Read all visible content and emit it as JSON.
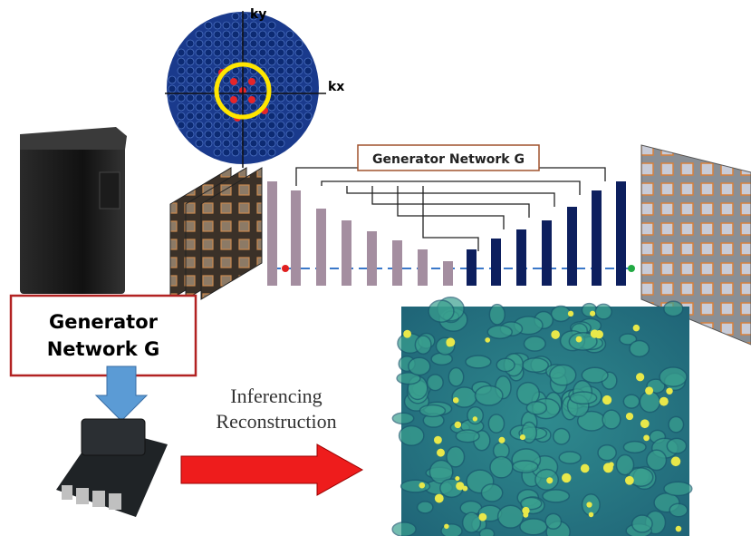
{
  "kspace": {
    "ky": "ky",
    "kx": "kx"
  },
  "network": {
    "title": "Generator Network G"
  },
  "box": {
    "lines": [
      "Generator",
      "Network G"
    ]
  },
  "arrow_label": {
    "lines": [
      "Inferencing",
      "Reconstruction"
    ]
  }
}
